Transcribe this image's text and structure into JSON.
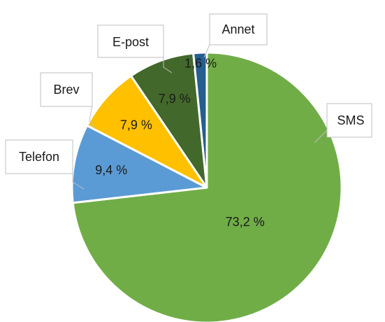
{
  "chart_data": {
    "type": "pie",
    "slices": [
      {
        "name": "SMS",
        "value": 73.2,
        "label": "73,2 %",
        "color": "#70ad47"
      },
      {
        "name": "Telefon",
        "value": 9.4,
        "label": "9,4 %",
        "color": "#5b9bd5"
      },
      {
        "name": "Brev",
        "value": 7.9,
        "label": "7,9 %",
        "color": "#ffc000"
      },
      {
        "name": "E-post",
        "value": 7.9,
        "label": "7,9 %",
        "color": "#43682b"
      },
      {
        "name": "Annet",
        "value": 1.6,
        "label": "1,6 %",
        "color": "#255e91"
      }
    ]
  }
}
